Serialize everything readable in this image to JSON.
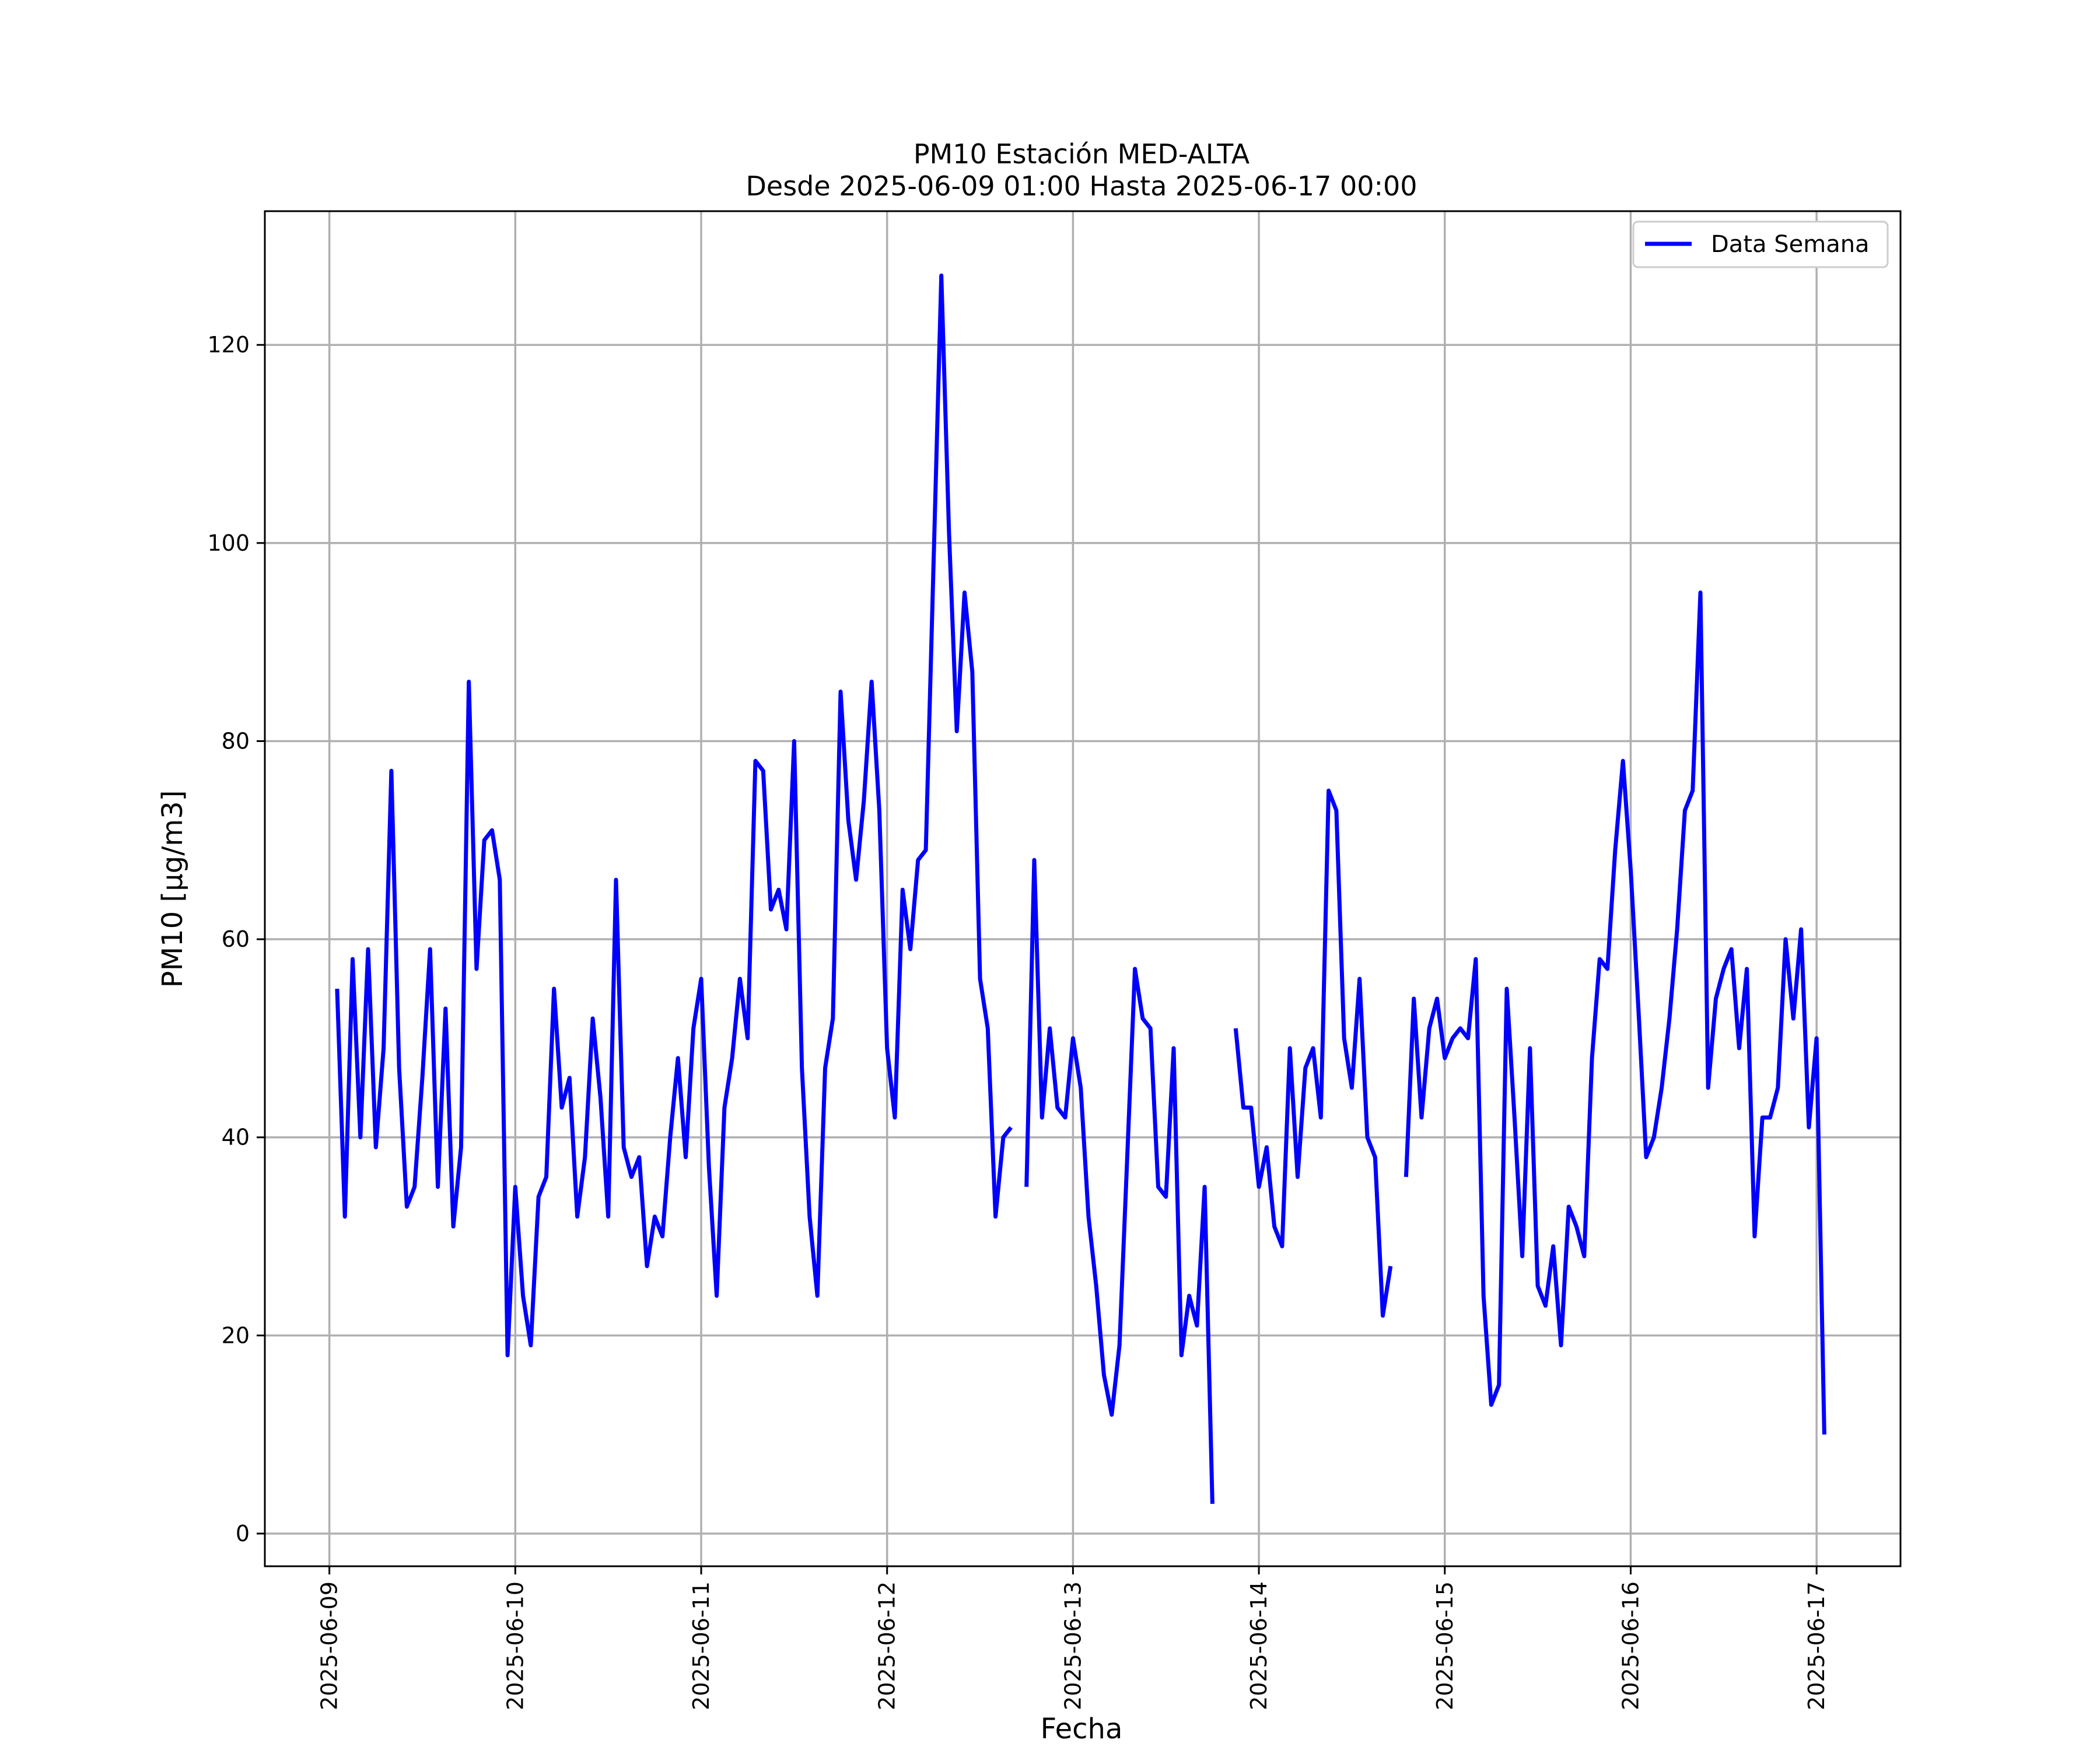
{
  "chart_data": {
    "type": "line",
    "title": "PM10 Estación MED-ALTA",
    "subtitle": "Desde 2025-06-09 01:00 Hasta 2025-06-17 00:00",
    "xlabel": "Fecha",
    "ylabel": "PM10 [µg/m3]",
    "xlim": [
      "2025-06-08 15:40",
      "2025-06-17 10:50"
    ],
    "ylim": [
      -3.3,
      133.5
    ],
    "x_ticks": [
      "2025-06-09",
      "2025-06-10",
      "2025-06-11",
      "2025-06-12",
      "2025-06-13",
      "2025-06-14",
      "2025-06-15",
      "2025-06-16",
      "2025-06-17"
    ],
    "y_ticks": [
      "0",
      "20",
      "40",
      "60",
      "80",
      "100",
      "120"
    ],
    "y_tick_values": [
      0,
      20,
      40,
      60,
      80,
      100,
      120
    ],
    "grid": true,
    "legend_position": "top-right",
    "series": [
      {
        "name": "Data Semana",
        "color": "#0000ff",
        "start": "2025-06-09 01:00",
        "interval_hours": 1,
        "values": [
          55,
          32,
          58,
          40,
          59,
          39,
          49,
          77,
          47,
          33,
          35,
          46,
          59,
          35,
          53,
          31,
          39,
          86,
          57,
          70,
          71,
          66,
          18,
          35,
          24,
          19,
          34,
          36,
          55,
          43,
          46,
          32,
          38,
          52,
          44,
          32,
          66,
          39,
          36,
          38,
          27,
          32,
          30,
          40,
          48,
          38,
          51,
          56,
          37,
          24,
          43,
          48,
          56,
          50,
          78,
          77,
          63,
          65,
          61,
          80,
          47,
          32,
          24,
          47,
          52,
          85,
          72,
          66,
          74,
          86,
          73,
          49,
          42,
          65,
          59,
          68,
          69,
          98,
          127,
          101,
          81,
          95,
          87,
          56,
          51,
          32,
          40,
          41,
          null,
          35,
          68,
          42,
          51,
          43,
          42,
          50,
          45,
          32,
          25,
          16,
          12,
          19,
          38,
          57,
          52,
          51,
          35,
          34,
          49,
          18,
          24,
          21,
          35,
          3,
          null,
          null,
          51,
          43,
          43,
          35,
          39,
          31,
          29,
          49,
          36,
          47,
          49,
          42,
          75,
          73,
          50,
          45,
          56,
          40,
          38,
          22,
          27,
          null,
          36,
          54,
          42,
          51,
          54,
          48,
          50,
          51,
          50,
          58,
          24,
          13,
          15,
          55,
          42,
          28,
          49,
          25,
          23,
          29,
          19,
          33,
          31,
          28,
          48,
          58,
          57,
          69,
          78,
          67,
          53,
          38,
          40,
          45,
          52,
          61,
          73,
          75,
          95,
          45,
          54,
          57,
          59,
          49,
          57,
          30,
          42,
          42,
          45,
          60,
          52,
          61,
          41,
          50,
          10
        ]
      }
    ]
  }
}
